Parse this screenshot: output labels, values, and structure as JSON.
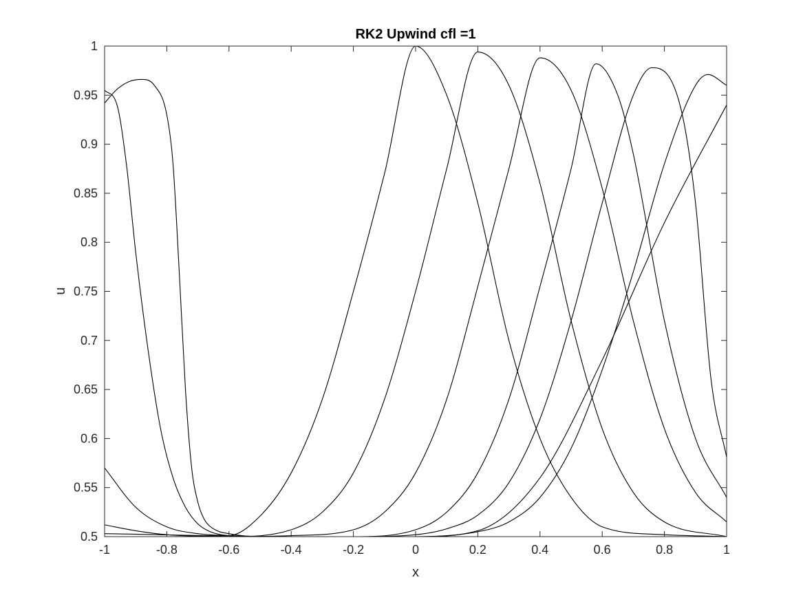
{
  "chart_data": {
    "type": "line",
    "title": "RK2 Upwind cfl =1",
    "xlabel": "x",
    "ylabel": "u",
    "xlim": [
      -1,
      1
    ],
    "ylim": [
      0.5,
      1
    ],
    "xticks": [
      -1,
      -0.8,
      -0.6,
      -0.4,
      -0.2,
      0,
      0.2,
      0.4,
      0.6,
      0.8,
      1
    ],
    "xtick_labels": [
      "-1",
      "-0.8",
      "-0.6",
      "-0.4",
      "-0.2",
      "0",
      "0.2",
      "0.4",
      "0.6",
      "0.8",
      "1"
    ],
    "yticks": [
      0.5,
      0.55,
      0.6,
      0.65,
      0.7,
      0.75,
      0.8,
      0.85,
      0.9,
      0.95,
      1
    ],
    "ytick_labels": [
      "0.5",
      "0.55",
      "0.6",
      "0.65",
      "0.7",
      "0.75",
      "0.8",
      "0.85",
      "0.9",
      "0.95",
      "1"
    ],
    "grid": false,
    "box": true,
    "line_color": "#000000",
    "series": [
      {
        "x": [
          -1,
          -0.8,
          -0.6,
          -0.5,
          -0.4,
          -0.3,
          -0.2,
          -0.1,
          0,
          0.1,
          0.2,
          0.3,
          0.4,
          0.5,
          0.6,
          0.8,
          1
        ],
        "y": [
          0.5,
          0.5,
          0.501,
          0.521,
          0.565,
          0.64,
          0.75,
          0.87,
          1.0,
          0.95,
          0.84,
          0.7,
          0.6,
          0.54,
          0.51,
          0.502,
          0.5
        ]
      },
      {
        "x": [
          -1,
          -0.8,
          -0.6,
          -0.4,
          -0.3,
          -0.2,
          -0.1,
          0,
          0.1,
          0.2,
          0.3,
          0.4,
          0.5,
          0.6,
          0.7,
          0.8,
          1
        ],
        "y": [
          0.5,
          0.5,
          0.5,
          0.507,
          0.525,
          0.565,
          0.64,
          0.75,
          0.875,
          0.994,
          0.96,
          0.86,
          0.72,
          0.61,
          0.545,
          0.515,
          0.5
        ]
      },
      {
        "x": [
          -1,
          -0.6,
          -0.4,
          -0.2,
          -0.1,
          0,
          0.1,
          0.2,
          0.3,
          0.4,
          0.5,
          0.6,
          0.7,
          0.8,
          0.9,
          1
        ],
        "y": [
          0.5,
          0.5,
          0.501,
          0.507,
          0.525,
          0.565,
          0.64,
          0.755,
          0.875,
          0.988,
          0.955,
          0.855,
          0.72,
          0.61,
          0.545,
          0.515
        ]
      },
      {
        "x": [
          -1,
          -0.4,
          -0.2,
          0,
          0.1,
          0.2,
          0.3,
          0.4,
          0.5,
          0.58,
          0.65,
          0.7,
          0.8,
          0.9,
          1
        ],
        "y": [
          0.503,
          0.5,
          0.5,
          0.507,
          0.525,
          0.565,
          0.64,
          0.755,
          0.875,
          0.982,
          0.95,
          0.89,
          0.72,
          0.6,
          0.54
        ]
      },
      {
        "x": [
          -1,
          -0.9,
          -0.8,
          -0.6,
          -0.4,
          -0.2,
          0,
          0.1,
          0.2,
          0.3,
          0.4,
          0.5,
          0.6,
          0.7,
          0.76,
          0.85,
          0.9,
          0.95,
          1
        ],
        "y": [
          0.512,
          0.506,
          0.502,
          0.5,
          0.5,
          0.5,
          0.502,
          0.508,
          0.522,
          0.555,
          0.62,
          0.72,
          0.84,
          0.95,
          0.978,
          0.94,
          0.84,
          0.66,
          0.581
        ]
      },
      {
        "x": [
          -1,
          -0.9,
          -0.8,
          -0.7,
          -0.6,
          -0.4,
          -0.2,
          0,
          0.2,
          0.3,
          0.4,
          0.5,
          0.6,
          0.7,
          0.8,
          0.9,
          0.94,
          1
        ],
        "y": [
          0.57,
          0.53,
          0.51,
          0.503,
          0.501,
          0.5,
          0.5,
          0.5,
          0.505,
          0.515,
          0.54,
          0.59,
          0.67,
          0.77,
          0.88,
          0.96,
          0.971,
          0.96
        ]
      },
      {
        "x": [
          -1,
          -0.96,
          -0.93,
          -0.9,
          -0.86,
          -0.82,
          -0.78,
          -0.74,
          -0.7,
          -0.66,
          -0.6,
          -0.5,
          -0.4,
          -0.2,
          0,
          0.2,
          0.4,
          0.6,
          0.8,
          1
        ],
        "y": [
          0.955,
          0.94,
          0.88,
          0.79,
          0.69,
          0.61,
          0.56,
          0.53,
          0.513,
          0.505,
          0.501,
          0.5,
          0.5,
          0.5,
          0.5,
          0.506,
          0.56,
          0.68,
          0.82,
          0.94
        ]
      },
      {
        "x": [
          -1,
          -0.96,
          -0.92,
          -0.88,
          -0.84,
          -0.8,
          -0.78,
          -0.76,
          -0.74,
          -0.72,
          -0.7,
          -0.68,
          -0.65,
          -0.6,
          -0.5,
          -0.4,
          1
        ],
        "y": [
          0.942,
          0.956,
          0.964,
          0.966,
          0.96,
          0.93,
          0.88,
          0.77,
          0.65,
          0.57,
          0.535,
          0.518,
          0.508,
          0.503,
          0.5,
          0.5,
          0.5
        ]
      }
    ]
  }
}
